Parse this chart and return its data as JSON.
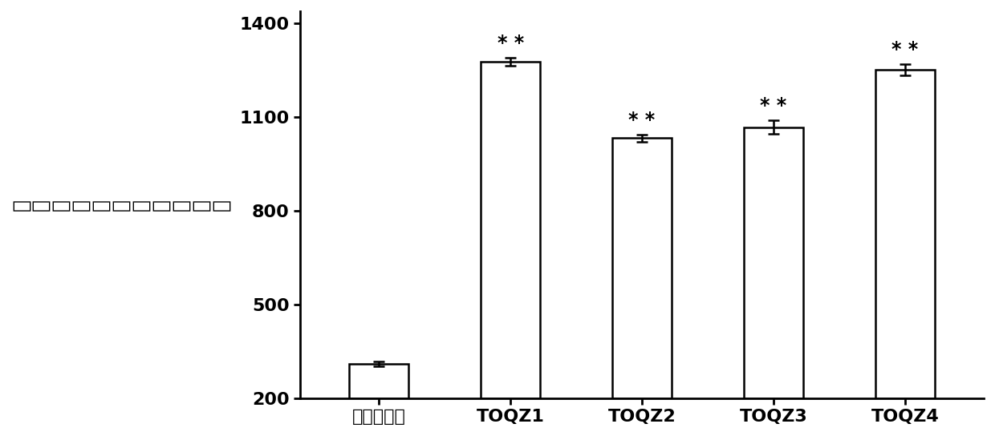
{
  "categories": [
    "哈维氏弧菌",
    "TOQZ1",
    "TOQZ2",
    "TOQZ3",
    "TOQZ4"
  ],
  "values": [
    310,
    1278,
    1033,
    1068,
    1252
  ],
  "errors": [
    8,
    12,
    12,
    22,
    18
  ],
  "bar_color": "#ffffff",
  "bar_edgecolor": "#000000",
  "bar_linewidth": 1.8,
  "bar_width": 0.45,
  "ylim": [
    200,
    1440
  ],
  "yticks": [
    200,
    500,
    800,
    1100,
    1400
  ],
  "ylabel_chars": [
    "流",
    "式",
    "细",
    "胞",
    "仪",
    "检",
    "测",
    "荧",
    "光",
    "强",
    "度"
  ],
  "ylabel_fontsize": 18,
  "tick_fontsize": 16,
  "xlabel_fontsize": 16,
  "significance_labels": [
    false,
    true,
    true,
    true,
    true
  ],
  "sig_text": "* *",
  "sig_fontsize": 17,
  "sig_fontweight": "bold",
  "capsize": 5,
  "elinewidth": 1.8,
  "ecapthick": 1.8,
  "background_color": "#ffffff",
  "axis_linewidth": 2.0,
  "figure_width": 12.4,
  "figure_height": 5.44,
  "dpi": 100
}
